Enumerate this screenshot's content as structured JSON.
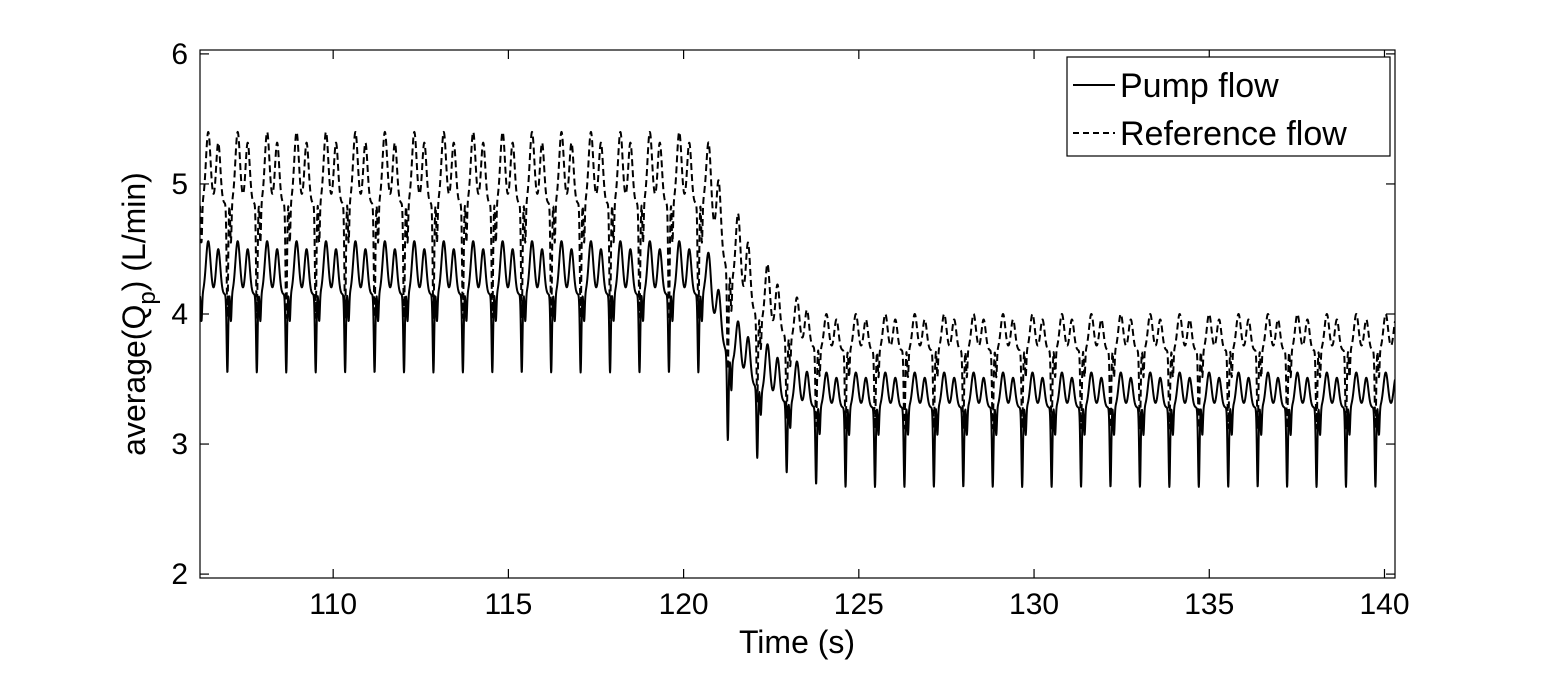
{
  "chart_data": {
    "type": "line",
    "xlabel": "Time (s)",
    "ylabel": {
      "main": "average(Q",
      "sub": "p",
      "tail": ") (L/min)"
    },
    "xlim": [
      106.2,
      140.3
    ],
    "ylim": [
      1.97,
      6.03
    ],
    "xticks": [
      110,
      115,
      120,
      125,
      130,
      135,
      140
    ],
    "yticks": [
      2,
      3,
      4,
      5,
      6
    ],
    "grid": false,
    "legend_position": "top-right",
    "series": [
      {
        "name": "Pump flow",
        "style": "solid",
        "color": "#000000",
        "period_s": 0.84,
        "segments": [
          {
            "x_start": 106.2,
            "x_end": 120.6,
            "peak": 4.56,
            "plateau": 4.15,
            "trough": 3.55
          },
          {
            "x_start": 121.3,
            "x_end": 121.3,
            "peak": 4.0,
            "plateau": 3.65,
            "trough": 3.0
          },
          {
            "x_start": 122.2,
            "x_end": 122.2,
            "peak": 3.8,
            "plateau": 3.4,
            "trough": 2.88
          },
          {
            "x_start": 123.1,
            "x_end": 123.1,
            "peak": 3.65,
            "plateau": 3.3,
            "trough": 2.76
          },
          {
            "x_start": 124.0,
            "x_end": 140.3,
            "peak": 3.55,
            "plateau": 3.28,
            "trough": 2.67
          }
        ]
      },
      {
        "name": "Reference flow",
        "style": "dashed",
        "color": "#000000",
        "period_s": 0.84,
        "segments": [
          {
            "x_start": 106.2,
            "x_end": 120.6,
            "peak": 5.4,
            "plateau": 4.85,
            "trough": 3.97
          },
          {
            "x_start": 121.3,
            "x_end": 121.3,
            "peak": 4.9,
            "plateau": 4.3,
            "trough": 3.55
          },
          {
            "x_start": 122.2,
            "x_end": 122.2,
            "peak": 4.45,
            "plateau": 3.95,
            "trough": 3.3
          },
          {
            "x_start": 123.1,
            "x_end": 123.1,
            "peak": 4.15,
            "plateau": 3.8,
            "trough": 3.18
          },
          {
            "x_start": 124.0,
            "x_end": 140.3,
            "peak": 4.0,
            "plateau": 3.72,
            "trough": 3.12
          }
        ]
      }
    ]
  }
}
